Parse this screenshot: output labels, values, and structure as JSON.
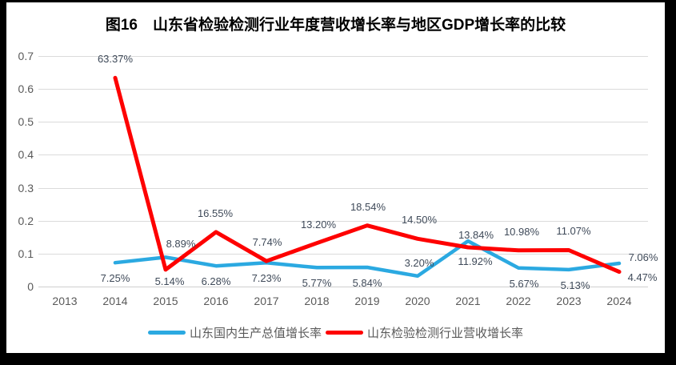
{
  "window": {
    "frame_color": "#000000",
    "canvas_color": "#ffffff"
  },
  "title": "图16　山东省检验检测行业年度营收增长率与地区GDP增长率的比较",
  "chart_data": {
    "type": "line",
    "x": [
      "2013",
      "2014",
      "2015",
      "2016",
      "2017",
      "2018",
      "2019",
      "2020",
      "2021",
      "2022",
      "2023",
      "2024"
    ],
    "series": [
      {
        "name": "山东国内生产总值增长率",
        "color": "#2BA9E1",
        "values_pct": [
          null,
          7.25,
          8.89,
          6.28,
          7.23,
          5.77,
          5.84,
          3.2,
          13.84,
          5.67,
          5.13,
          7.06
        ]
      },
      {
        "name": "山东检验检测行业营收增长率",
        "color": "#FE0000",
        "values_pct": [
          null,
          63.37,
          5.14,
          16.55,
          7.74,
          13.2,
          18.54,
          14.5,
          11.92,
          10.98,
          11.07,
          4.47
        ]
      }
    ],
    "y_ticks": [
      "0",
      "0.1",
      "0.2",
      "0.3",
      "0.4",
      "0.5",
      "0.6",
      "0.7"
    ],
    "ylim": [
      0,
      0.7
    ],
    "grid": true,
    "legend_position": "bottom",
    "label_format": "percent2"
  },
  "colors": {
    "gridline": "#DBDBDB",
    "baseline": "#CFCFCF",
    "axis_text": "#595959",
    "data_label": "#3F4A59",
    "legend_text": "#595959",
    "title_text": "#000000"
  }
}
